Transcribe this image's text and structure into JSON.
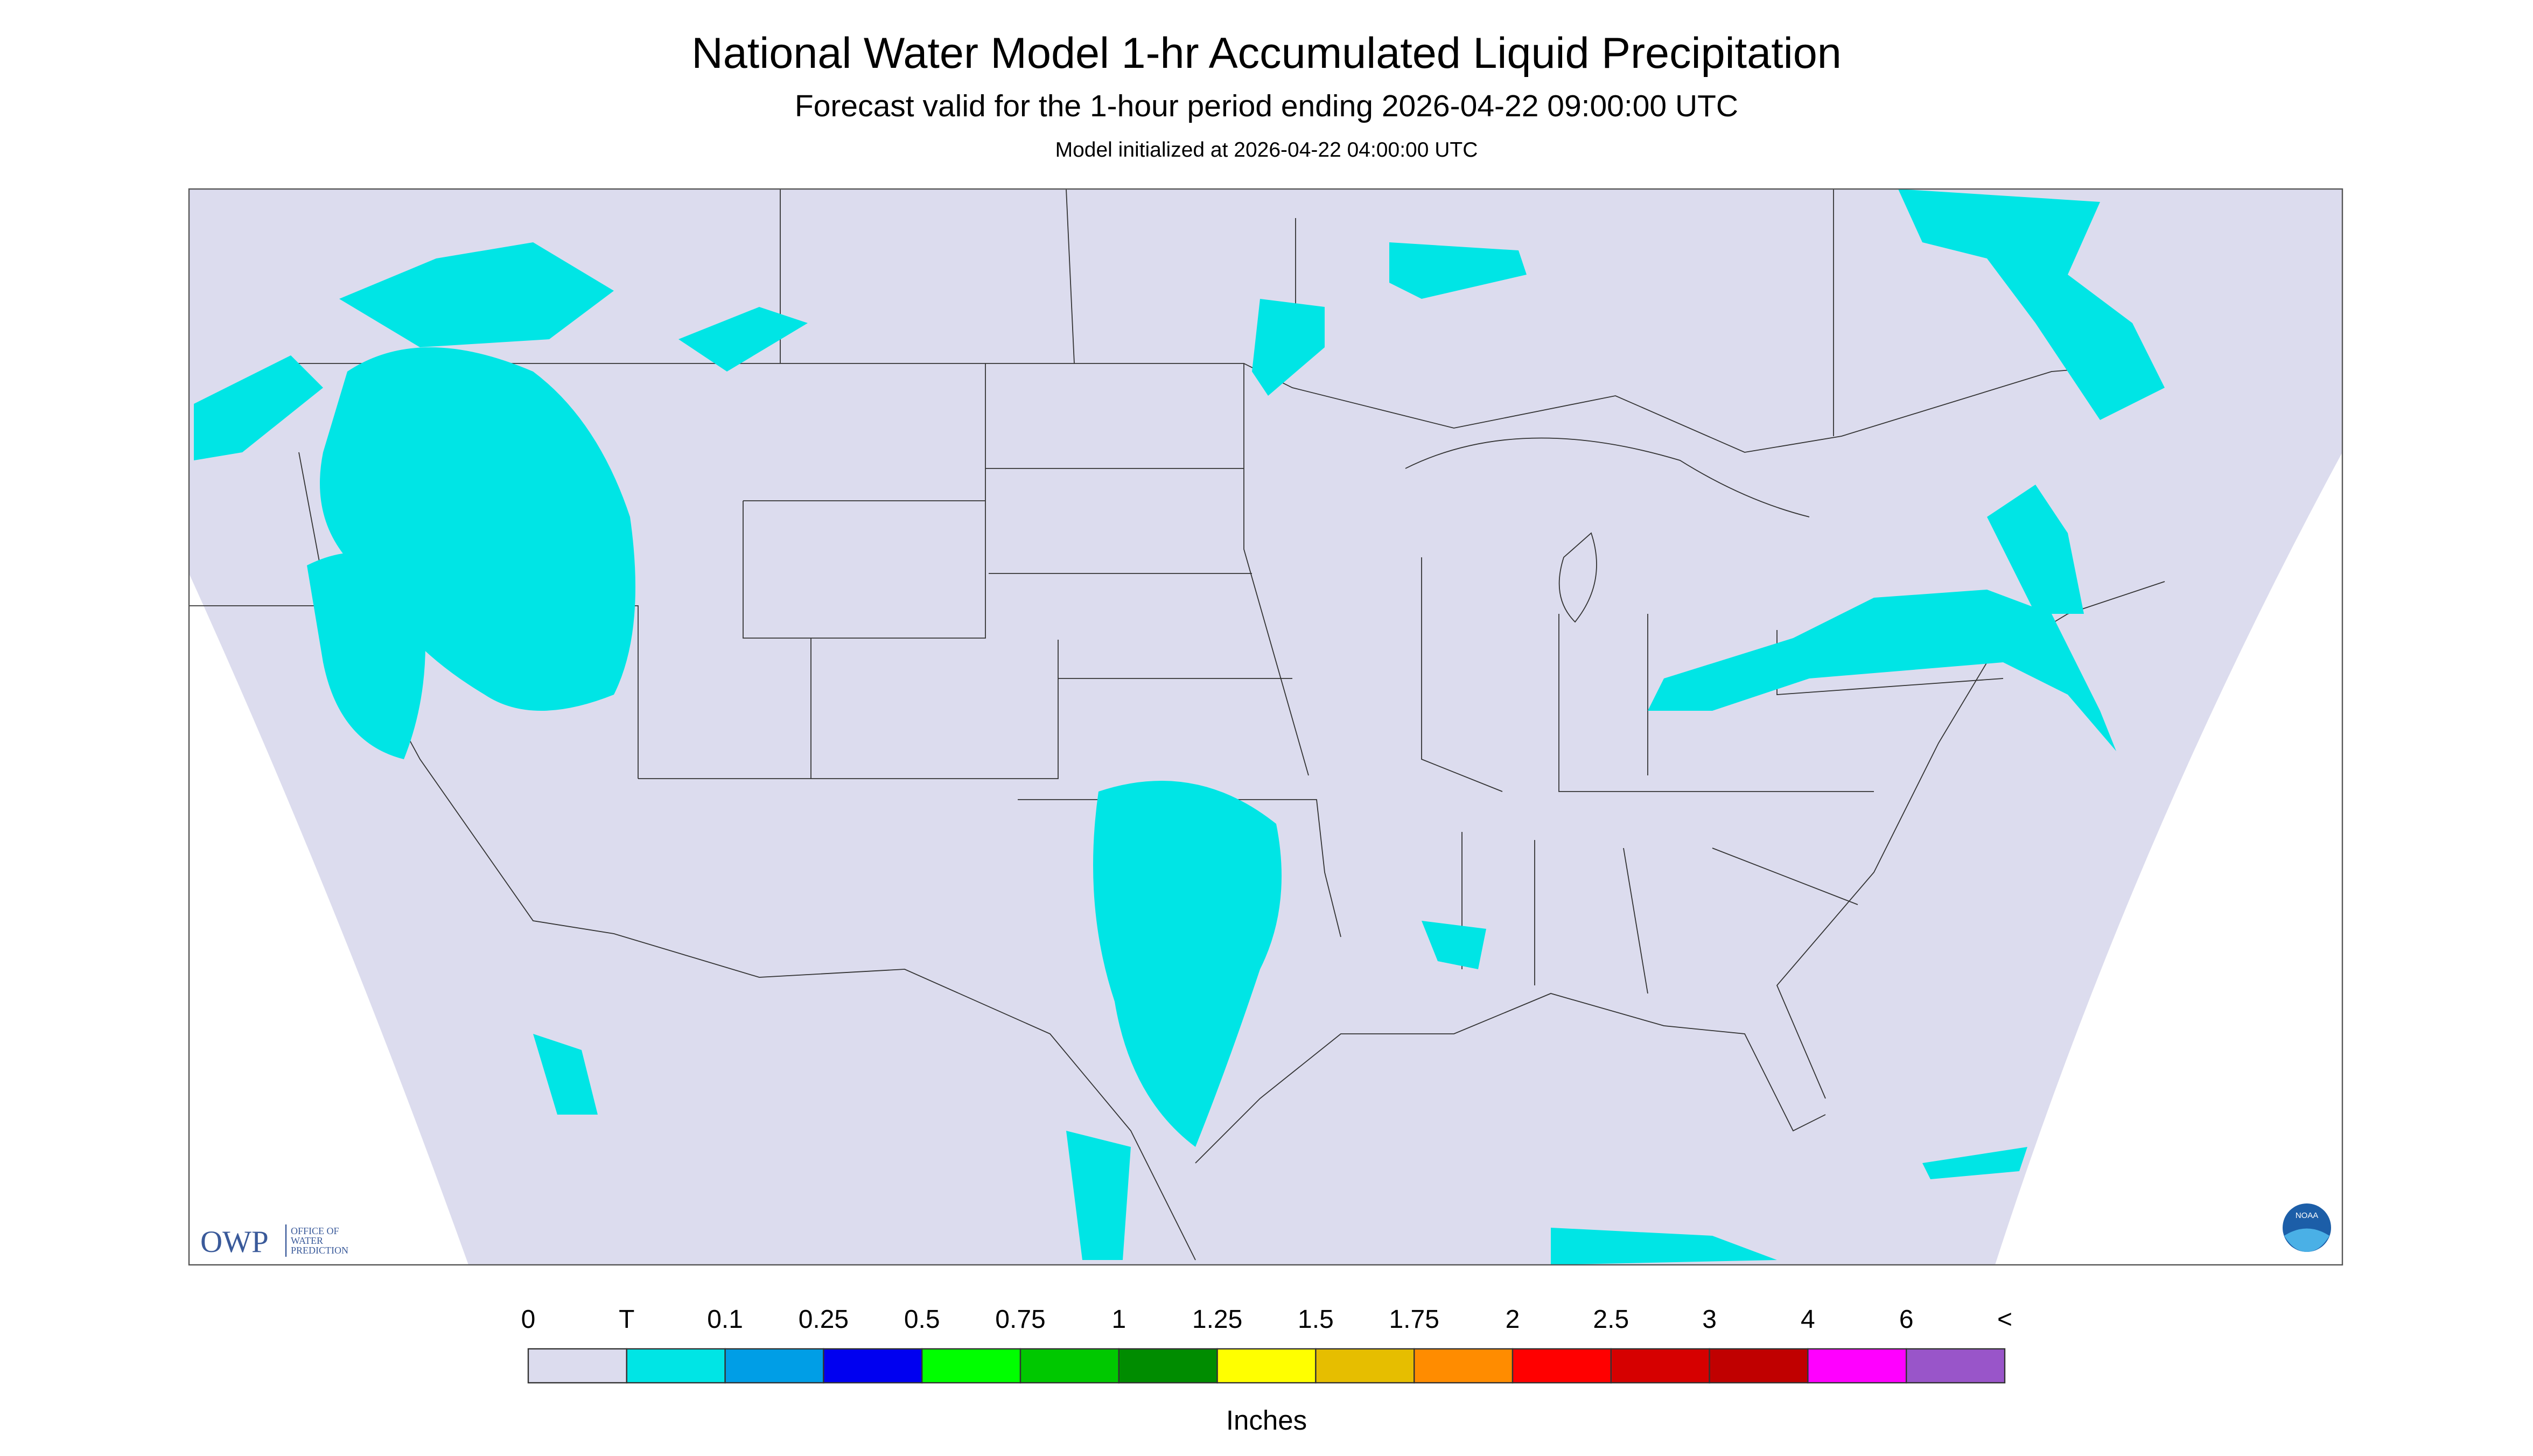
{
  "header": {
    "title": "National Water Model 1-hr Accumulated Liquid Precipitation",
    "subtitle": "Forecast valid for the 1-hour period ending 2026-04-22 09:00:00 UTC",
    "note": "Model initialized at 2026-04-22 04:00:00 UTC"
  },
  "logos": {
    "owp": "OWP",
    "owp_lines": [
      "OFFICE OF",
      "WATER",
      "PREDICTION"
    ],
    "noaa": "NOAA"
  },
  "legend": {
    "labels": [
      "0",
      "T",
      "0.1",
      "0.25",
      "0.5",
      "0.75",
      "1",
      "1.25",
      "1.5",
      "1.75",
      "2",
      "2.5",
      "3",
      "4",
      "6",
      "<"
    ],
    "colors": [
      "#dcdcee",
      "#00e5e5",
      "#009ee6",
      "#0000f0",
      "#00ff00",
      "#00c800",
      "#008c00",
      "#ffff00",
      "#e6be00",
      "#ff8c00",
      "#ff0000",
      "#d60000",
      "#c00000",
      "#ff00ff",
      "#9955c9"
    ],
    "unit": "Inches"
  }
}
